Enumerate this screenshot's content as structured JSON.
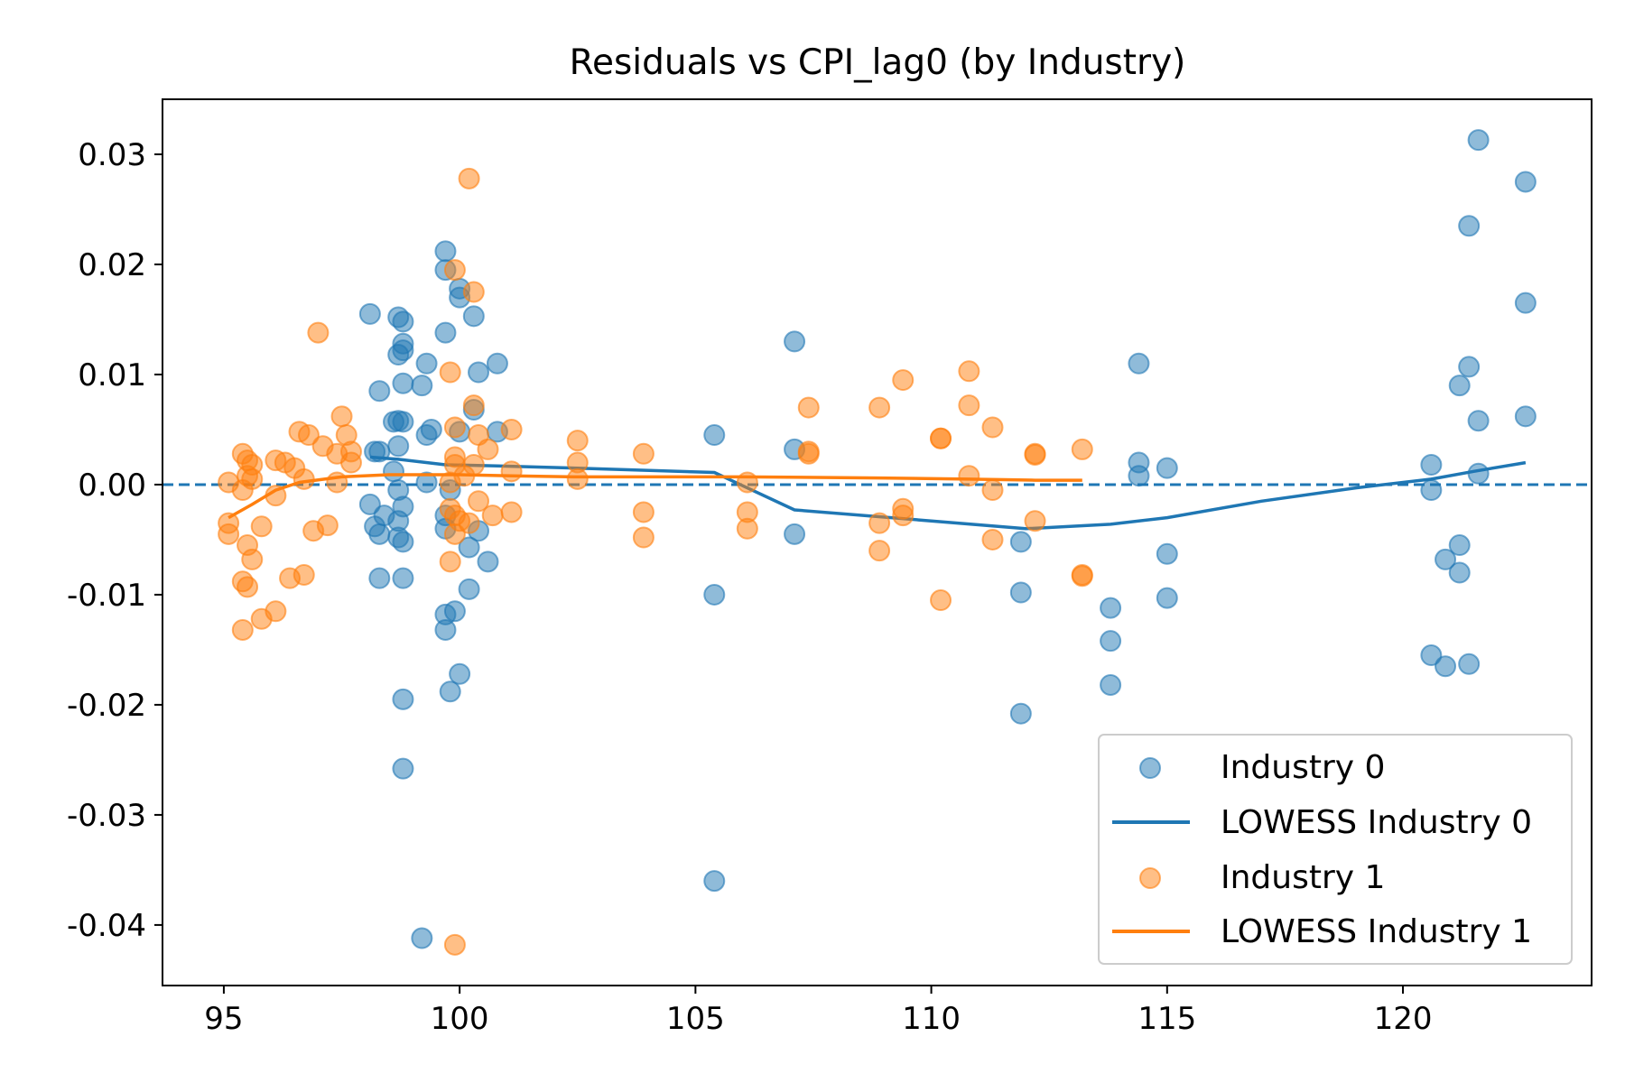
{
  "chart_data": {
    "type": "scatter",
    "title": "Residuals vs CPI_lag0 (by Industry)",
    "xlabel": "",
    "ylabel": "",
    "xlim": [
      93.7,
      124.0
    ],
    "ylim": [
      -0.0455,
      0.035
    ],
    "x_ticks": [
      95,
      100,
      105,
      110,
      115,
      120
    ],
    "x_tick_labels": [
      "95",
      "100",
      "105",
      "110",
      "115",
      "120"
    ],
    "y_ticks": [
      0.03,
      0.02,
      0.01,
      0.0,
      -0.01,
      -0.02,
      -0.03,
      -0.04
    ],
    "y_tick_labels": [
      "0.03",
      "0.02",
      "0.01",
      "0.00",
      "-0.01",
      "-0.02",
      "-0.03",
      "-0.04"
    ],
    "reference_line": {
      "y": 0.0,
      "style": "dashed",
      "color": "#1f77b4"
    },
    "legend": {
      "placement": "lower-right"
    },
    "colors": {
      "industry0": "#1f77b4",
      "industry1": "#ff7f0e"
    },
    "series": [
      {
        "name": "Industry 0",
        "kind": "scatter",
        "color": "#1f77b4",
        "points": [
          [
            98.1,
            0.0155
          ],
          [
            98.2,
            0.003
          ],
          [
            98.3,
            0.003
          ],
          [
            98.3,
            0.0085
          ],
          [
            98.3,
            -0.0085
          ],
          [
            98.1,
            -0.0018
          ],
          [
            98.2,
            -0.0038
          ],
          [
            98.3,
            -0.0045
          ],
          [
            98.4,
            -0.0028
          ],
          [
            98.6,
            0.0057
          ],
          [
            98.7,
            0.0152
          ],
          [
            98.8,
            0.0148
          ],
          [
            98.8,
            0.0128
          ],
          [
            98.8,
            0.0122
          ],
          [
            98.7,
            0.0118
          ],
          [
            98.8,
            0.0092
          ],
          [
            98.7,
            0.0058
          ],
          [
            98.8,
            0.0057
          ],
          [
            98.7,
            0.0035
          ],
          [
            98.6,
            0.0012
          ],
          [
            98.7,
            -0.0005
          ],
          [
            98.8,
            -0.002
          ],
          [
            98.7,
            -0.0033
          ],
          [
            98.7,
            -0.0048
          ],
          [
            98.8,
            -0.0052
          ],
          [
            98.8,
            -0.0085
          ],
          [
            98.8,
            -0.0195
          ],
          [
            98.8,
            -0.0258
          ],
          [
            99.2,
            0.009
          ],
          [
            99.3,
            0.011
          ],
          [
            99.3,
            0.0045
          ],
          [
            99.4,
            0.005
          ],
          [
            99.3,
            0.0002
          ],
          [
            99.2,
            -0.0412
          ],
          [
            99.7,
            0.0212
          ],
          [
            99.7,
            0.0195
          ],
          [
            99.7,
            0.0138
          ],
          [
            99.8,
            -0.0005
          ],
          [
            99.7,
            -0.0028
          ],
          [
            99.7,
            -0.004
          ],
          [
            99.7,
            -0.0118
          ],
          [
            99.7,
            -0.0132
          ],
          [
            99.8,
            -0.0188
          ],
          [
            99.9,
            -0.0115
          ],
          [
            100.0,
            0.0178
          ],
          [
            100.0,
            0.017
          ],
          [
            100.0,
            -0.0172
          ],
          [
            100.0,
            0.0048
          ],
          [
            100.3,
            0.0153
          ],
          [
            100.4,
            0.0102
          ],
          [
            100.3,
            0.0068
          ],
          [
            100.2,
            -0.0057
          ],
          [
            100.2,
            -0.0095
          ],
          [
            100.4,
            -0.0042
          ],
          [
            100.6,
            -0.007
          ],
          [
            100.8,
            0.011
          ],
          [
            100.8,
            0.0048
          ],
          [
            105.4,
            0.0045
          ],
          [
            105.4,
            -0.01
          ],
          [
            105.4,
            -0.036
          ],
          [
            107.1,
            0.013
          ],
          [
            107.1,
            0.0032
          ],
          [
            107.1,
            -0.0045
          ],
          [
            111.9,
            -0.0052
          ],
          [
            111.9,
            -0.0098
          ],
          [
            111.9,
            -0.0208
          ],
          [
            113.8,
            -0.0112
          ],
          [
            113.8,
            -0.0142
          ],
          [
            113.8,
            -0.0182
          ],
          [
            114.4,
            0.011
          ],
          [
            114.4,
            0.002
          ],
          [
            114.4,
            0.0008
          ],
          [
            115.0,
            0.0015
          ],
          [
            115.0,
            -0.0063
          ],
          [
            115.0,
            -0.0103
          ],
          [
            120.6,
            0.0018
          ],
          [
            120.6,
            -0.0005
          ],
          [
            120.6,
            -0.0155
          ],
          [
            120.9,
            -0.0068
          ],
          [
            120.9,
            -0.0165
          ],
          [
            121.2,
            0.009
          ],
          [
            121.2,
            -0.0055
          ],
          [
            121.2,
            -0.008
          ],
          [
            121.4,
            0.0235
          ],
          [
            121.4,
            0.0107
          ],
          [
            121.4,
            -0.0163
          ],
          [
            121.6,
            0.0313
          ],
          [
            121.6,
            0.0058
          ],
          [
            121.6,
            0.001
          ],
          [
            122.6,
            0.0275
          ],
          [
            122.6,
            0.0165
          ],
          [
            122.6,
            0.0062
          ]
        ]
      },
      {
        "name": "LOWESS Industry 0",
        "kind": "line",
        "color": "#1f77b4",
        "points": [
          [
            98.1,
            0.0025
          ],
          [
            98.7,
            0.0023
          ],
          [
            99.7,
            0.0018
          ],
          [
            100.8,
            0.0017
          ],
          [
            102.5,
            0.0015
          ],
          [
            105.4,
            0.0011
          ],
          [
            105.8,
            0.0003
          ],
          [
            107.1,
            -0.0023
          ],
          [
            110.0,
            -0.0033
          ],
          [
            112.0,
            -0.004
          ],
          [
            113.8,
            -0.0036
          ],
          [
            115.0,
            -0.003
          ],
          [
            117.0,
            -0.0015
          ],
          [
            119.0,
            -0.0003
          ],
          [
            120.6,
            0.0005
          ],
          [
            121.5,
            0.0012
          ],
          [
            122.6,
            0.002
          ]
        ]
      },
      {
        "name": "Industry 1",
        "kind": "scatter",
        "color": "#ff7f0e",
        "points": [
          [
            95.1,
            0.0002
          ],
          [
            95.1,
            -0.0035
          ],
          [
            95.1,
            -0.0045
          ],
          [
            95.4,
            0.0028
          ],
          [
            95.5,
            0.0022
          ],
          [
            95.5,
            0.0008
          ],
          [
            95.4,
            -0.0005
          ],
          [
            95.5,
            -0.0055
          ],
          [
            95.4,
            -0.0088
          ],
          [
            95.5,
            -0.0093
          ],
          [
            95.4,
            -0.0132
          ],
          [
            95.6,
            0.0018
          ],
          [
            95.6,
            0.0005
          ],
          [
            95.6,
            -0.0068
          ],
          [
            95.8,
            -0.0038
          ],
          [
            95.8,
            -0.0122
          ],
          [
            96.1,
            0.0022
          ],
          [
            96.1,
            -0.001
          ],
          [
            96.1,
            -0.0115
          ],
          [
            96.3,
            0.002
          ],
          [
            96.4,
            -0.0085
          ],
          [
            96.5,
            0.0015
          ],
          [
            96.6,
            0.0048
          ],
          [
            96.7,
            -0.0082
          ],
          [
            96.7,
            0.0005
          ],
          [
            96.8,
            0.0045
          ],
          [
            96.9,
            -0.0042
          ],
          [
            97.0,
            0.0138
          ],
          [
            97.1,
            0.0035
          ],
          [
            97.2,
            -0.0037
          ],
          [
            97.4,
            0.0028
          ],
          [
            97.4,
            0.0002
          ],
          [
            97.5,
            0.0062
          ],
          [
            97.6,
            0.0045
          ],
          [
            97.7,
            0.003
          ],
          [
            97.7,
            0.002
          ],
          [
            99.9,
            0.0195
          ],
          [
            99.8,
            0.0102
          ],
          [
            99.9,
            0.0052
          ],
          [
            99.9,
            0.0025
          ],
          [
            99.9,
            0.0018
          ],
          [
            99.8,
            0.0002
          ],
          [
            99.8,
            -0.0022
          ],
          [
            99.9,
            -0.0028
          ],
          [
            99.9,
            -0.0045
          ],
          [
            99.8,
            -0.007
          ],
          [
            99.9,
            -0.0418
          ],
          [
            100.0,
            -0.0033
          ],
          [
            100.1,
            0.0008
          ],
          [
            100.2,
            0.0278
          ],
          [
            100.3,
            0.0175
          ],
          [
            100.3,
            0.0072
          ],
          [
            100.4,
            0.0045
          ],
          [
            100.3,
            0.0018
          ],
          [
            100.4,
            -0.0015
          ],
          [
            100.2,
            -0.0035
          ],
          [
            100.6,
            0.0032
          ],
          [
            100.7,
            -0.0028
          ],
          [
            101.1,
            0.005
          ],
          [
            101.1,
            0.0012
          ],
          [
            101.1,
            -0.0025
          ],
          [
            102.5,
            0.004
          ],
          [
            102.5,
            0.002
          ],
          [
            102.5,
            0.0005
          ],
          [
            103.9,
            0.0028
          ],
          [
            103.9,
            -0.0025
          ],
          [
            103.9,
            -0.0048
          ],
          [
            106.1,
            0.0002
          ],
          [
            106.1,
            -0.0025
          ],
          [
            106.1,
            -0.004
          ],
          [
            107.4,
            0.007
          ],
          [
            107.4,
            0.003
          ],
          [
            107.4,
            0.0028
          ],
          [
            108.9,
            0.007
          ],
          [
            108.9,
            -0.0035
          ],
          [
            108.9,
            -0.006
          ],
          [
            109.4,
            0.0095
          ],
          [
            109.4,
            -0.0022
          ],
          [
            109.4,
            -0.0028
          ],
          [
            110.2,
            0.0042
          ],
          [
            110.2,
            0.0042
          ],
          [
            110.2,
            -0.0105
          ],
          [
            110.8,
            0.0103
          ],
          [
            110.8,
            0.0072
          ],
          [
            110.8,
            0.0008
          ],
          [
            111.3,
            0.0052
          ],
          [
            111.3,
            -0.0005
          ],
          [
            111.3,
            -0.005
          ],
          [
            112.2,
            0.0028
          ],
          [
            112.2,
            0.0027
          ],
          [
            112.2,
            -0.0033
          ],
          [
            113.2,
            0.0032
          ],
          [
            113.2,
            -0.0082
          ],
          [
            113.2,
            -0.0083
          ]
        ]
      },
      {
        "name": "LOWESS Industry 1",
        "kind": "line",
        "color": "#ff7f0e",
        "points": [
          [
            95.1,
            -0.003
          ],
          [
            95.6,
            -0.0018
          ],
          [
            96.1,
            -0.0005
          ],
          [
            96.6,
            0.0002
          ],
          [
            97.5,
            0.0007
          ],
          [
            98.5,
            0.0009
          ],
          [
            100.0,
            0.0009
          ],
          [
            101.1,
            0.0008
          ],
          [
            102.5,
            0.0007
          ],
          [
            104.0,
            0.0007
          ],
          [
            106.0,
            0.0007
          ],
          [
            108.9,
            0.0006
          ],
          [
            110.8,
            0.0005
          ],
          [
            112.2,
            0.0004
          ],
          [
            113.2,
            0.0004
          ]
        ]
      }
    ]
  }
}
